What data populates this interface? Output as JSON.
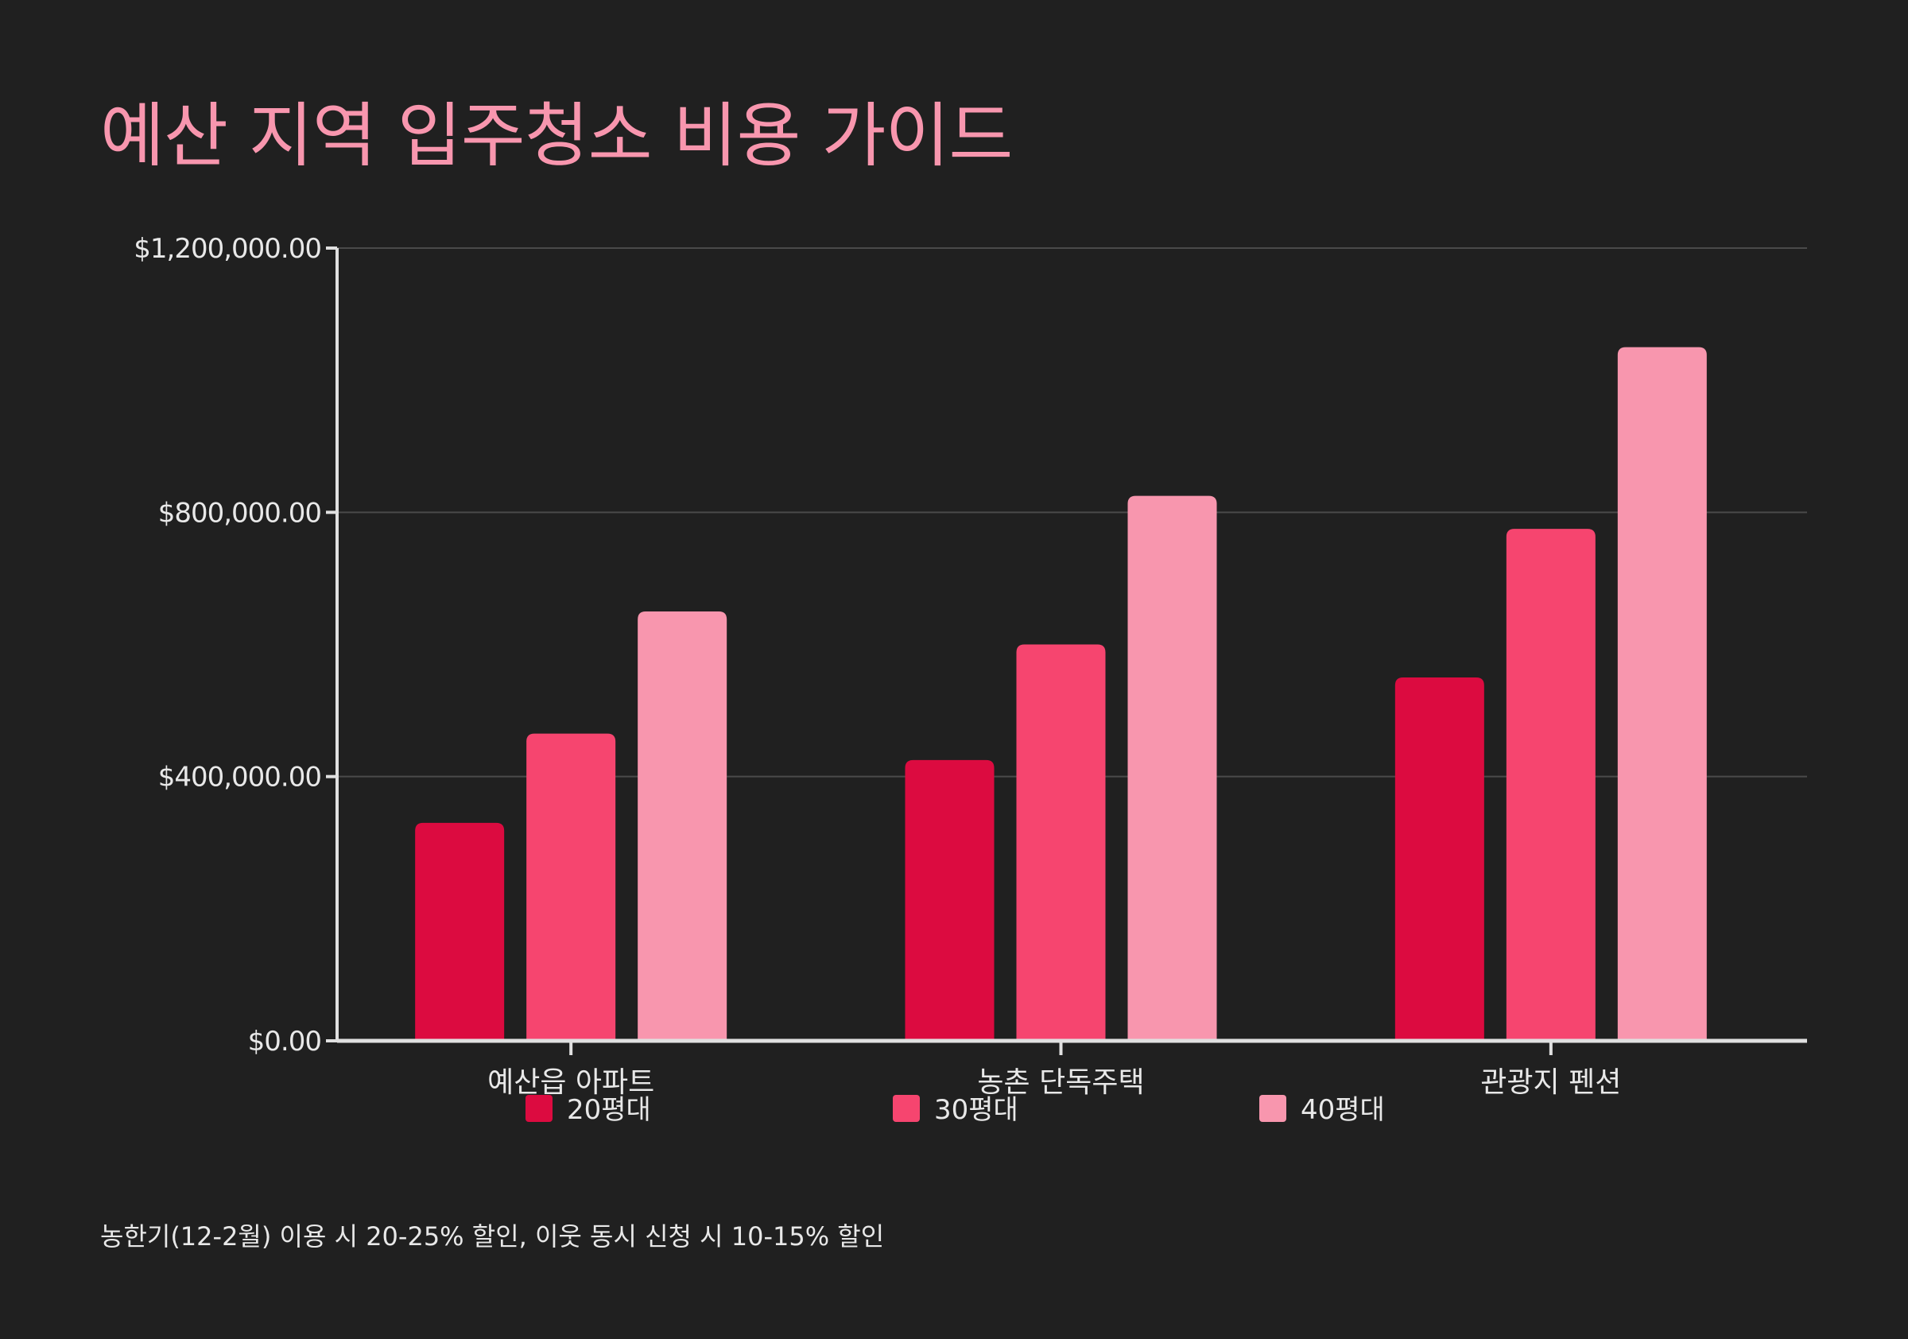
{
  "title": "예산 지역 입주청소 비용 가이드",
  "footnote": "농한기(12-2월) 이용 시 20-25% 할인, 이웃 동시 신청 시 10-15% 할인",
  "chart_data": {
    "type": "bar",
    "title": "예산 지역 입주청소 비용 가이드",
    "categories": [
      "예산읍 아파트",
      "농촌 단독주택",
      "관광지 펜션"
    ],
    "series": [
      {
        "name": "20평대",
        "color": "#dc0b40",
        "values": [
          330000,
          425000,
          550000
        ]
      },
      {
        "name": "30평대",
        "color": "#f6456f",
        "values": [
          465000,
          600000,
          775000
        ]
      },
      {
        "name": "40평대",
        "color": "#f896ae",
        "values": [
          650000,
          825000,
          1050000
        ]
      }
    ],
    "yticks": [
      0,
      400000,
      800000,
      1200000
    ],
    "ytick_labels": [
      "$0.00",
      "$400,000.00",
      "$800,000.00",
      "$1,200,000.00"
    ],
    "ylim": [
      0,
      1200000
    ],
    "xlabel": "",
    "ylabel": "",
    "grid": true,
    "legend_position": "bottom"
  }
}
